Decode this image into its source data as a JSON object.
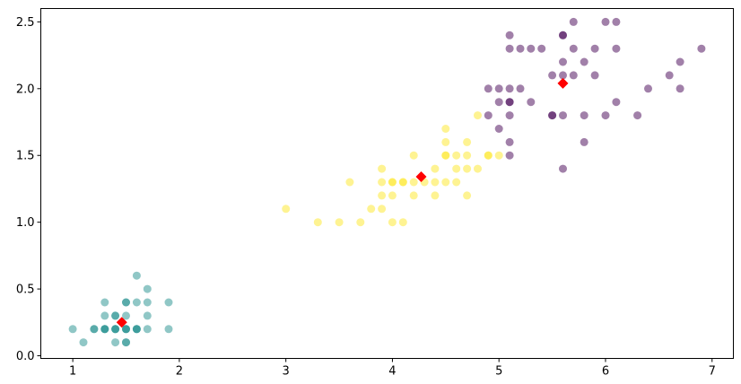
{
  "chart_data": {
    "type": "scatter",
    "title": "",
    "xlabel": "",
    "ylabel": "",
    "xlim": [
      0.7,
      7.2
    ],
    "ylim": [
      -0.02,
      2.6
    ],
    "xticks": [
      1,
      2,
      3,
      4,
      5,
      6,
      7
    ],
    "yticks": [
      0.0,
      0.5,
      1.0,
      1.5,
      2.0,
      2.5
    ],
    "xtick_labels": [
      "1",
      "2",
      "3",
      "4",
      "5",
      "6",
      "7"
    ],
    "ytick_labels": [
      "0.0",
      "0.5",
      "1.0",
      "1.5",
      "2.0",
      "2.5"
    ],
    "grid": false,
    "legend": "none",
    "point_alpha": 0.5,
    "series": [
      {
        "color": "#21908d",
        "points": [
          [
            1.0,
            0.2
          ],
          [
            1.1,
            0.1
          ],
          [
            1.2,
            0.2
          ],
          [
            1.3,
            0.2
          ],
          [
            1.4,
            0.2
          ],
          [
            1.4,
            0.2
          ],
          [
            1.5,
            0.2
          ],
          [
            1.5,
            0.2
          ],
          [
            1.4,
            0.1
          ],
          [
            1.5,
            0.1
          ],
          [
            1.6,
            0.2
          ],
          [
            1.6,
            0.2
          ],
          [
            1.3,
            0.3
          ],
          [
            1.4,
            0.3
          ],
          [
            1.5,
            0.3
          ],
          [
            1.7,
            0.3
          ],
          [
            1.3,
            0.4
          ],
          [
            1.5,
            0.4
          ],
          [
            1.5,
            0.4
          ],
          [
            1.6,
            0.4
          ],
          [
            1.7,
            0.4
          ],
          [
            1.9,
            0.4
          ],
          [
            1.7,
            0.5
          ],
          [
            1.6,
            0.6
          ],
          [
            1.9,
            0.2
          ],
          [
            1.7,
            0.2
          ],
          [
            1.6,
            0.2
          ],
          [
            1.4,
            0.2
          ],
          [
            1.3,
            0.2
          ],
          [
            1.5,
            0.2
          ],
          [
            1.4,
            0.3
          ],
          [
            1.5,
            0.1
          ],
          [
            1.2,
            0.2
          ],
          [
            1.3,
            0.2
          ]
        ]
      },
      {
        "color": "#fde725",
        "points": [
          [
            3.0,
            1.1
          ],
          [
            3.3,
            1.0
          ],
          [
            3.5,
            1.0
          ],
          [
            3.7,
            1.0
          ],
          [
            4.0,
            1.0
          ],
          [
            4.1,
            1.0
          ],
          [
            3.8,
            1.1
          ],
          [
            3.9,
            1.1
          ],
          [
            3.9,
            1.2
          ],
          [
            4.0,
            1.2
          ],
          [
            4.2,
            1.2
          ],
          [
            4.4,
            1.2
          ],
          [
            4.7,
            1.2
          ],
          [
            3.6,
            1.3
          ],
          [
            3.9,
            1.3
          ],
          [
            4.0,
            1.3
          ],
          [
            4.1,
            1.3
          ],
          [
            4.2,
            1.3
          ],
          [
            4.3,
            1.3
          ],
          [
            4.4,
            1.3
          ],
          [
            4.5,
            1.3
          ],
          [
            4.6,
            1.3
          ],
          [
            3.9,
            1.4
          ],
          [
            4.4,
            1.4
          ],
          [
            4.6,
            1.4
          ],
          [
            4.7,
            1.4
          ],
          [
            4.8,
            1.4
          ],
          [
            4.2,
            1.5
          ],
          [
            4.5,
            1.5
          ],
          [
            4.6,
            1.5
          ],
          [
            4.7,
            1.5
          ],
          [
            4.9,
            1.5
          ],
          [
            5.0,
            1.5
          ],
          [
            4.5,
            1.6
          ],
          [
            4.7,
            1.6
          ],
          [
            4.5,
            1.7
          ],
          [
            4.8,
            1.8
          ],
          [
            4.5,
            1.5
          ],
          [
            4.9,
            1.5
          ],
          [
            4.0,
            1.3
          ],
          [
            4.1,
            1.3
          ]
        ]
      },
      {
        "color": "#440154",
        "points": [
          [
            5.1,
            1.5
          ],
          [
            5.1,
            1.6
          ],
          [
            5.0,
            1.7
          ],
          [
            5.6,
            1.4
          ],
          [
            5.8,
            1.6
          ],
          [
            4.9,
            1.8
          ],
          [
            5.1,
            1.8
          ],
          [
            5.6,
            1.8
          ],
          [
            5.5,
            1.8
          ],
          [
            5.8,
            1.8
          ],
          [
            6.0,
            1.8
          ],
          [
            6.3,
            1.8
          ],
          [
            5.0,
            1.9
          ],
          [
            5.1,
            1.9
          ],
          [
            5.3,
            1.9
          ],
          [
            6.1,
            1.9
          ],
          [
            4.9,
            2.0
          ],
          [
            5.0,
            2.0
          ],
          [
            5.1,
            2.0
          ],
          [
            5.2,
            2.0
          ],
          [
            6.4,
            2.0
          ],
          [
            6.7,
            2.0
          ],
          [
            5.6,
            2.1
          ],
          [
            5.7,
            2.1
          ],
          [
            5.9,
            2.1
          ],
          [
            6.6,
            2.1
          ],
          [
            5.5,
            2.1
          ],
          [
            5.8,
            2.2
          ],
          [
            5.6,
            2.2
          ],
          [
            6.7,
            2.2
          ],
          [
            5.1,
            2.3
          ],
          [
            5.2,
            2.3
          ],
          [
            5.3,
            2.3
          ],
          [
            5.4,
            2.3
          ],
          [
            5.7,
            2.3
          ],
          [
            5.9,
            2.3
          ],
          [
            6.1,
            2.3
          ],
          [
            6.9,
            2.3
          ],
          [
            5.1,
            2.4
          ],
          [
            5.6,
            2.4
          ],
          [
            5.6,
            2.4
          ],
          [
            5.7,
            2.5
          ],
          [
            6.0,
            2.5
          ],
          [
            6.1,
            2.5
          ],
          [
            5.5,
            1.8
          ],
          [
            5.1,
            1.9
          ]
        ]
      }
    ],
    "centroids": {
      "color": "#ff0000",
      "marker": "diamond",
      "points": [
        [
          1.46,
          0.25
        ],
        [
          4.27,
          1.34
        ],
        [
          5.6,
          2.04
        ]
      ]
    }
  }
}
